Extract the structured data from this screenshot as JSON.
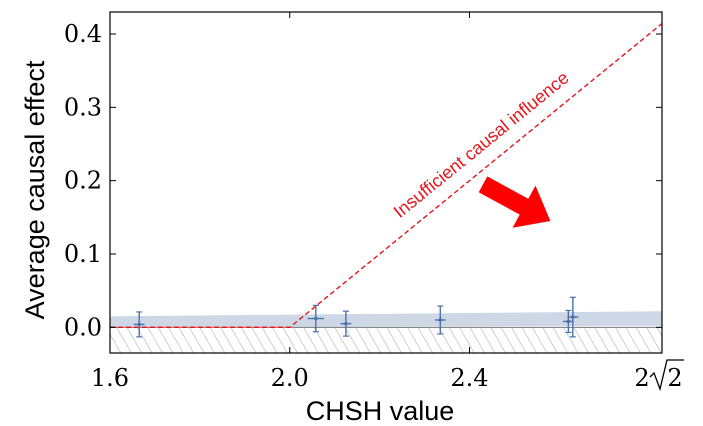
{
  "chart_data": {
    "type": "scatter",
    "title": "",
    "xlabel": "CHSH value",
    "ylabel": "Average causal effect",
    "xlim": [
      1.6,
      2.8284
    ],
    "ylim": [
      -0.035,
      0.43
    ],
    "x_tick_labels": [
      {
        "value": 1.6,
        "label": "1.6"
      },
      {
        "value": 2.0,
        "label": "2.0"
      },
      {
        "value": 2.4,
        "label": "2.4"
      },
      {
        "value": 2.8284,
        "label": "2√2",
        "base": "2",
        "radicand": "2"
      }
    ],
    "y_tick_labels": [
      {
        "value": 0.0,
        "label": "0.0"
      },
      {
        "value": 0.1,
        "label": "0.1"
      },
      {
        "value": 0.2,
        "label": "0.2"
      },
      {
        "value": 0.3,
        "label": "0.3"
      },
      {
        "value": 0.4,
        "label": "0.4"
      }
    ],
    "grid": false,
    "points": [
      {
        "x": 1.665,
        "y": 0.004,
        "xerr": 0.012,
        "yerr": 0.017
      },
      {
        "x": 2.058,
        "y": 0.012,
        "xerr": 0.018,
        "yerr": 0.018
      },
      {
        "x": 2.125,
        "y": 0.005,
        "xerr": 0.012,
        "yerr": 0.017
      },
      {
        "x": 2.335,
        "y": 0.01,
        "xerr": 0.012,
        "yerr": 0.019
      },
      {
        "x": 2.62,
        "y": 0.008,
        "xerr": 0.012,
        "yerr": 0.015
      },
      {
        "x": 2.63,
        "y": 0.014,
        "xerr": 0.012,
        "yerr": 0.027
      }
    ],
    "bound_line": {
      "points": [
        [
          1.6,
          0.0
        ],
        [
          2.0,
          0.0
        ],
        [
          2.8284,
          0.4142
        ]
      ],
      "color": "#e8141c",
      "style": "dashed"
    },
    "fit_band": {
      "x": [
        1.6,
        2.8284
      ],
      "lower": [
        0.0,
        0.002
      ],
      "upper": [
        0.015,
        0.022
      ],
      "color": "#c5d0e2"
    },
    "hatched_region": {
      "y_below": 0.0
    },
    "annotation": {
      "text": "Insufficient causal influence",
      "color": "#e8141c"
    },
    "arrow": {
      "color": "#ff0000",
      "from": [
        2.43,
        0.195
      ],
      "to": [
        2.58,
        0.145
      ]
    },
    "marker_color": "#4a72aa"
  }
}
